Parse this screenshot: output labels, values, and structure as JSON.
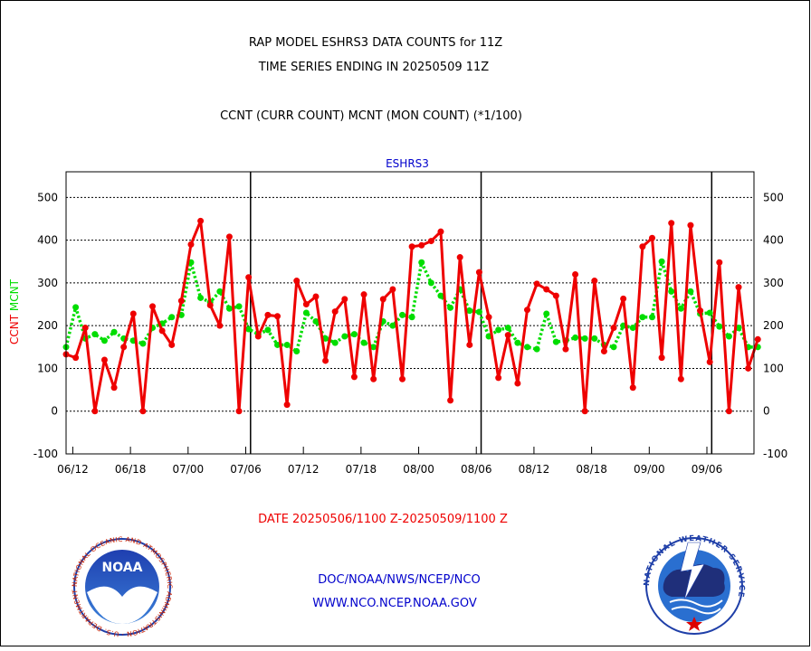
{
  "header": {
    "line1": "RAP MODEL ESHRS3 DATA COUNTS for 11Z",
    "line2": "TIME SERIES ENDING IN 20250509 11Z",
    "line3": "CCNT (CURR COUNT) MCNT (MON COUNT) (*1/100)"
  },
  "footer": {
    "date_range": "DATE 20250506/1100 Z-20250509/1100 Z",
    "link1": "DOC/NOAA/NWS/NCEP/NCO",
    "link2": "WWW.NCO.NCEP.NOAA.GOV"
  },
  "logos": {
    "noaa_text": "NOAA",
    "noaa_ring": "NATIONAL OCEANIC AND ATMOSPHERIC ADMINISTRATION · U.S. DEPARTMENT OF COMMERCE",
    "nws_ring": "NATIONAL WEATHER SERVICE"
  },
  "colors": {
    "ccnt": "#ee0000",
    "mcnt": "#00dd00",
    "title_blue": "#0000cc",
    "date_red": "#ee0000"
  },
  "chart_data": {
    "type": "line",
    "title": "ESHRS3",
    "ylabel_parts": [
      "CCNT",
      "MCNT"
    ],
    "ylim": [
      -100,
      560
    ],
    "yticks": [
      -100,
      0,
      100,
      200,
      300,
      400,
      500
    ],
    "xlim": [
      0,
      71.6
    ],
    "xticks": [
      {
        "x": 0.7,
        "label": "06/12"
      },
      {
        "x": 6.7,
        "label": "06/18"
      },
      {
        "x": 12.7,
        "label": "07/00"
      },
      {
        "x": 18.7,
        "label": "07/06"
      },
      {
        "x": 24.7,
        "label": "07/12"
      },
      {
        "x": 30.7,
        "label": "07/18"
      },
      {
        "x": 36.7,
        "label": "08/00"
      },
      {
        "x": 42.7,
        "label": "08/06"
      },
      {
        "x": 48.7,
        "label": "08/12"
      },
      {
        "x": 54.7,
        "label": "08/18"
      },
      {
        "x": 60.7,
        "label": "09/00"
      },
      {
        "x": 66.7,
        "label": "09/06"
      }
    ],
    "day_dividers": [
      19.2,
      43.2,
      67.2
    ],
    "grid": "horizontal dashed",
    "series": [
      {
        "name": "CCNT",
        "values": [
          133,
          125,
          195,
          0,
          120,
          55,
          150,
          228,
          0,
          245,
          188,
          155,
          258,
          390,
          445,
          248,
          200,
          408,
          0,
          313,
          175,
          225,
          222,
          15,
          305,
          250,
          268,
          118,
          233,
          262,
          80,
          273,
          75,
          262,
          285,
          75,
          385,
          388,
          398,
          420,
          25,
          360,
          155,
          325,
          220,
          78,
          178,
          65,
          237,
          298,
          285,
          270,
          145,
          320,
          0,
          305,
          140,
          195,
          263,
          55,
          385,
          405,
          125,
          440,
          75,
          435,
          235,
          115,
          348,
          0,
          290,
          100,
          168
        ]
      },
      {
        "name": "MCNT",
        "values": [
          150,
          243,
          170,
          180,
          165,
          185,
          170,
          165,
          158,
          195,
          205,
          220,
          225,
          348,
          265,
          255,
          280,
          240,
          245,
          192,
          180,
          190,
          155,
          155,
          140,
          230,
          210,
          170,
          160,
          175,
          180,
          160,
          150,
          210,
          200,
          225,
          220,
          348,
          300,
          270,
          242,
          285,
          235,
          232,
          175,
          190,
          195,
          160,
          150,
          145,
          228,
          162,
          165,
          172,
          170,
          170,
          155,
          150,
          200,
          195,
          220,
          220,
          350,
          280,
          240,
          280,
          228,
          230,
          198,
          175,
          195,
          150,
          150
        ]
      }
    ]
  }
}
